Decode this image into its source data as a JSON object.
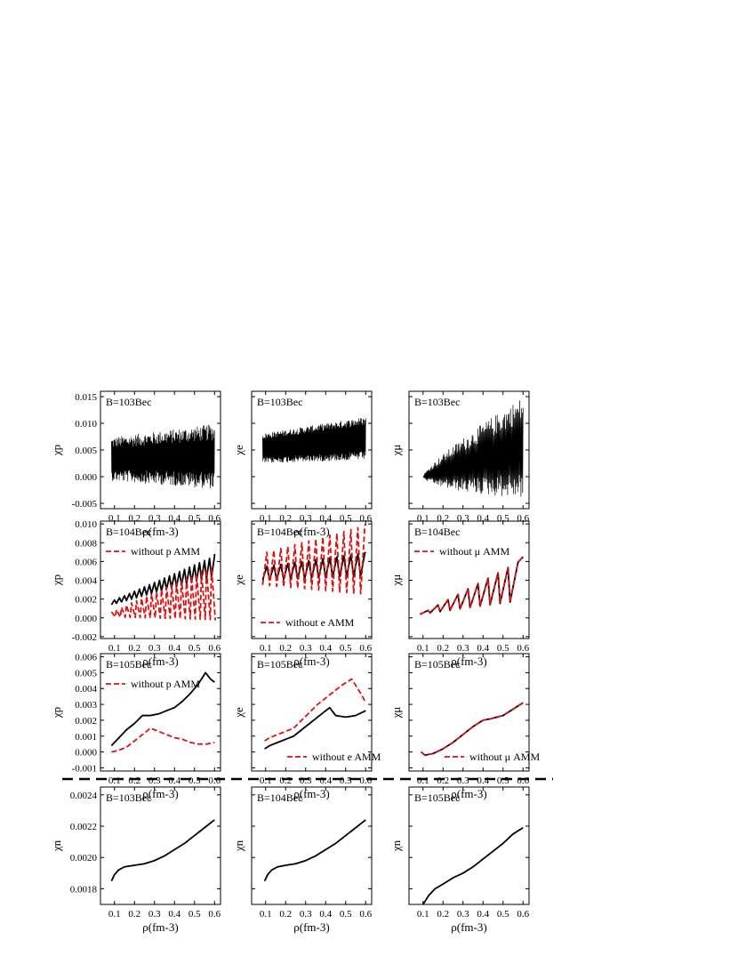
{
  "figure": {
    "separator_style": "dashed"
  },
  "colors": {
    "full": "#000000",
    "without_amm": "#dd1111"
  },
  "chart_data": [
    {
      "id": "p1",
      "type": "line",
      "ylabel": "χp",
      "xlabel": "ρ(fm-3)",
      "panel_label": "B=103Bec",
      "xlim": [
        0.03,
        0.63
      ],
      "ylim": [
        -0.006,
        0.016
      ],
      "x_ticks": [
        "0.1",
        "0.2",
        "0.3",
        "0.4",
        "0.5",
        "0.6"
      ],
      "y_ticks": [
        "-0.005",
        "0.000",
        "0.005",
        "0.010",
        "0.015"
      ],
      "y_tick_values": [
        -0.005,
        0.0,
        0.005,
        0.01,
        0.015
      ],
      "series": [
        {
          "style": "solid",
          "color": "#000000",
          "kind": "osc",
          "params": {
            "x0": 0.085,
            "x1": 0.6,
            "base": [
              0.0033,
              0.0038
            ],
            "amp": [
              0.003,
              0.0045
            ],
            "cycles": 180,
            "noise": 0.35
          }
        }
      ]
    },
    {
      "id": "e1",
      "type": "line",
      "ylabel": "χe",
      "xlabel": "ρ(fm-3)",
      "panel_label": "B=103Bec",
      "xlim": [
        0.03,
        0.63
      ],
      "ylim": [
        -0.006,
        0.016
      ],
      "x_ticks": [
        "0.1",
        "0.2",
        "0.3",
        "0.4",
        "0.5",
        "0.6"
      ],
      "y_ticks": [],
      "y_tick_values": [
        -0.005,
        0.0,
        0.005,
        0.01,
        0.015
      ],
      "series": [
        {
          "style": "solid",
          "color": "#000000",
          "kind": "osc",
          "params": {
            "x0": 0.085,
            "x1": 0.6,
            "base": [
              0.0053,
              0.0072
            ],
            "amp": [
              0.0022,
              0.0032
            ],
            "cycles": 200,
            "noise": 0.25
          }
        }
      ]
    },
    {
      "id": "m1",
      "type": "line",
      "ylabel": "χμ",
      "xlabel": "",
      "panel_label": "B=103Bec",
      "xlim": [
        0.03,
        0.63
      ],
      "ylim": [
        -0.006,
        0.016
      ],
      "x_ticks": [
        "0.1",
        "0.2",
        "0.3",
        "0.4",
        "0.5",
        "0.6"
      ],
      "y_ticks": [],
      "y_tick_values": [
        -0.005,
        0.0,
        0.005,
        0.01,
        0.015
      ],
      "series": [
        {
          "style": "solid",
          "color": "#000000",
          "kind": "fan",
          "params": {
            "x0": 0.1,
            "x1": 0.6,
            "base": [
              0.0,
              0.0055
            ],
            "amp": [
              0.0,
              0.0095
            ],
            "cycles": 120
          }
        }
      ]
    },
    {
      "id": "p2",
      "type": "line",
      "ylabel": "χp",
      "xlabel": "ρ(fm-3)",
      "panel_label": "B=104Bec",
      "xlim": [
        0.03,
        0.63
      ],
      "ylim": [
        -0.0022,
        0.0103
      ],
      "x_ticks": [
        "0.1",
        "0.2",
        "0.3",
        "0.4",
        "0.5",
        "0.6"
      ],
      "y_ticks": [
        "-0.002",
        "0.000",
        "0.002",
        "0.004",
        "0.006",
        "0.008",
        "0.010"
      ],
      "y_tick_values": [
        -0.002,
        0.0,
        0.002,
        0.004,
        0.006,
        0.008,
        0.01
      ],
      "legend": {
        "label": "without p AMM",
        "position": "upper-left"
      },
      "series": [
        {
          "style": "solid",
          "color": "#000000",
          "kind": "saw",
          "params": {
            "x0": 0.085,
            "x1": 0.6,
            "period": 0.025,
            "base": [
              0.0014,
              0.0045
            ],
            "amp": [
              0.0005,
              0.0023
            ]
          }
        },
        {
          "name": "without p AMM",
          "style": "dashed",
          "color": "#dd1111",
          "kind": "saw",
          "params": {
            "x0": 0.085,
            "x1": 0.6,
            "period": 0.025,
            "base": [
              0.0001,
              -0.0002
            ],
            "amp": [
              0.0006,
              0.0065
            ],
            "invert": true
          }
        }
      ]
    },
    {
      "id": "e2",
      "type": "line",
      "ylabel": "χe",
      "xlabel": "ρ(fm-3)",
      "panel_label": "B=104Bec",
      "xlim": [
        0.03,
        0.63
      ],
      "ylim": [
        -0.0022,
        0.0103
      ],
      "x_ticks": [
        "0.1",
        "0.2",
        "0.3",
        "0.4",
        "0.5",
        "0.6"
      ],
      "y_ticks": [],
      "y_tick_values": [
        -0.002,
        0.0,
        0.002,
        0.004,
        0.006,
        0.008,
        0.01
      ],
      "legend": {
        "label": "without e AMM",
        "position": "lower-left"
      },
      "series": [
        {
          "style": "solid",
          "color": "#000000",
          "kind": "saw",
          "params": {
            "x0": 0.085,
            "x1": 0.6,
            "period": 0.035,
            "base": [
              0.004,
              0.0045
            ],
            "amp": [
              0.0015,
              0.0025
            ]
          }
        },
        {
          "name": "without e AMM",
          "style": "dashed",
          "color": "#dd1111",
          "kind": "saw",
          "params": {
            "x0": 0.085,
            "x1": 0.6,
            "period": 0.035,
            "base": [
              0.0035,
              0.0025
            ],
            "amp": [
              0.0035,
              0.0075
            ]
          }
        }
      ]
    },
    {
      "id": "m2",
      "type": "line",
      "ylabel": "χμ",
      "xlabel": "ρ(fm-3)",
      "panel_label": "B=104Bec",
      "xlim": [
        0.03,
        0.63
      ],
      "ylim": [
        -0.0022,
        0.0103
      ],
      "x_ticks": [
        "0.1",
        "0.2",
        "0.3",
        "0.4",
        "0.5",
        "0.6"
      ],
      "y_ticks": [],
      "y_tick_values": [
        -0.002,
        0.0,
        0.002,
        0.004,
        0.006,
        0.008,
        0.01
      ],
      "legend": {
        "label": "without μ AMM",
        "position": "upper-left"
      },
      "series": [
        {
          "style": "solid",
          "color": "#000000",
          "kind": "saw",
          "params": {
            "x0": 0.085,
            "x1": 0.6,
            "period": 0.05,
            "base": [
              0.0003,
              0.001
            ],
            "amp": [
              0.0005,
              0.0055
            ],
            "dip": true
          }
        },
        {
          "name": "without μ AMM",
          "style": "dashed",
          "color": "#dd1111",
          "kind": "saw",
          "params": {
            "x0": 0.085,
            "x1": 0.6,
            "period": 0.05,
            "base": [
              0.0003,
              0.001
            ],
            "amp": [
              0.0005,
              0.0055
            ],
            "dip": true
          }
        }
      ]
    },
    {
      "id": "p3",
      "type": "line",
      "ylabel": "χp",
      "xlabel": "ρ(fm-3)",
      "panel_label": "B=105Bec",
      "xlim": [
        0.03,
        0.63
      ],
      "ylim": [
        -0.0012,
        0.0062
      ],
      "x_ticks": [
        "0.1",
        "0.2",
        "0.3",
        "0.4",
        "0.5",
        "0.6"
      ],
      "y_ticks": [
        "-0.001",
        "0.000",
        "0.001",
        "0.002",
        "0.003",
        "0.004",
        "0.005",
        "0.006"
      ],
      "y_tick_values": [
        -0.001,
        0.0,
        0.001,
        0.002,
        0.003,
        0.004,
        0.005,
        0.006
      ],
      "legend": {
        "label": "without p AMM",
        "position": "upper-left"
      },
      "series": [
        {
          "style": "solid",
          "color": "#000000",
          "kind": "points",
          "x": [
            0.085,
            0.1,
            0.13,
            0.16,
            0.2,
            0.24,
            0.28,
            0.32,
            0.36,
            0.4,
            0.44,
            0.48,
            0.52,
            0.555,
            0.58,
            0.6
          ],
          "y": [
            0.0004,
            0.0006,
            0.001,
            0.0014,
            0.0018,
            0.0023,
            0.0023,
            0.0024,
            0.0026,
            0.0028,
            0.0032,
            0.0037,
            0.0043,
            0.005,
            0.0046,
            0.0044
          ]
        },
        {
          "name": "without p AMM",
          "style": "dashed",
          "color": "#dd1111",
          "kind": "points",
          "x": [
            0.085,
            0.12,
            0.16,
            0.2,
            0.24,
            0.28,
            0.32,
            0.36,
            0.4,
            0.44,
            0.48,
            0.52,
            0.56,
            0.6
          ],
          "y": [
            0.0,
            0.0001,
            0.0003,
            0.0007,
            0.0011,
            0.0015,
            0.0013,
            0.0011,
            0.0009,
            0.0008,
            0.0006,
            0.0005,
            0.0005,
            0.0006
          ]
        }
      ]
    },
    {
      "id": "e3",
      "type": "line",
      "ylabel": "χe",
      "xlabel": "ρ(fm-3)",
      "panel_label": "B=105Bec",
      "xlim": [
        0.03,
        0.63
      ],
      "ylim": [
        -0.0012,
        0.0062
      ],
      "x_ticks": [
        "0.1",
        "0.2",
        "0.3",
        "0.4",
        "0.5",
        "0.6"
      ],
      "y_ticks": [],
      "y_tick_values": [
        -0.001,
        0.0,
        0.001,
        0.002,
        0.003,
        0.004,
        0.005,
        0.006
      ],
      "legend": {
        "label": "without e AMM",
        "position": "lower-right"
      },
      "series": [
        {
          "style": "solid",
          "color": "#000000",
          "kind": "points",
          "x": [
            0.095,
            0.12,
            0.16,
            0.2,
            0.24,
            0.28,
            0.32,
            0.36,
            0.42,
            0.45,
            0.5,
            0.55,
            0.6
          ],
          "y": [
            0.0002,
            0.0004,
            0.0006,
            0.0008,
            0.001,
            0.0014,
            0.0018,
            0.0022,
            0.0028,
            0.0023,
            0.0022,
            0.0023,
            0.0026
          ]
        },
        {
          "name": "without e AMM",
          "style": "dashed",
          "color": "#dd1111",
          "kind": "points",
          "x": [
            0.095,
            0.12,
            0.16,
            0.2,
            0.24,
            0.28,
            0.32,
            0.36,
            0.4,
            0.44,
            0.48,
            0.53,
            0.58,
            0.6
          ],
          "y": [
            0.0007,
            0.0009,
            0.0011,
            0.0013,
            0.0015,
            0.002,
            0.0025,
            0.003,
            0.0034,
            0.0038,
            0.0042,
            0.0046,
            0.0036,
            0.0031
          ]
        }
      ]
    },
    {
      "id": "m3",
      "type": "line",
      "ylabel": "χμ",
      "xlabel": "ρ(fm-3)",
      "panel_label": "B=105Bec",
      "xlim": [
        0.03,
        0.63
      ],
      "ylim": [
        -0.0012,
        0.0062
      ],
      "x_ticks": [
        "0.1",
        "0.2",
        "0.3",
        "0.4",
        "0.5",
        "0.6"
      ],
      "y_ticks": [],
      "y_tick_values": [
        -0.001,
        0.0,
        0.001,
        0.002,
        0.003,
        0.004,
        0.005,
        0.006
      ],
      "legend": {
        "label": "without μ AMM",
        "position": "lower-right"
      },
      "series": [
        {
          "style": "solid",
          "color": "#000000",
          "kind": "points",
          "x": [
            0.09,
            0.11,
            0.15,
            0.2,
            0.25,
            0.3,
            0.35,
            0.4,
            0.44,
            0.5,
            0.55,
            0.6
          ],
          "y": [
            0.0,
            -0.0002,
            -0.0001,
            0.0002,
            0.0006,
            0.0011,
            0.0016,
            0.002,
            0.0021,
            0.0023,
            0.0027,
            0.0031
          ]
        },
        {
          "name": "without μ AMM",
          "style": "dashed",
          "color": "#dd1111",
          "kind": "points",
          "x": [
            0.09,
            0.11,
            0.15,
            0.2,
            0.25,
            0.3,
            0.35,
            0.4,
            0.44,
            0.5,
            0.55,
            0.6
          ],
          "y": [
            0.0,
            -0.0002,
            -0.0001,
            0.0002,
            0.0006,
            0.0011,
            0.0016,
            0.002,
            0.0021,
            0.0023,
            0.0027,
            0.0031
          ]
        }
      ]
    },
    {
      "id": "n1",
      "type": "line",
      "ylabel": "χn",
      "xlabel": "ρ(fm-3)",
      "panel_label": "B=103Bec",
      "xlim": [
        0.03,
        0.63
      ],
      "ylim": [
        0.0017,
        0.00245
      ],
      "x_ticks": [
        "0.1",
        "0.2",
        "0.3",
        "0.4",
        "0.5",
        "0.6"
      ],
      "y_ticks": [
        "0.0018",
        "0.0020",
        "0.0022",
        "0.0024"
      ],
      "y_tick_values": [
        0.0018,
        0.002,
        0.0022,
        0.0024
      ],
      "series": [
        {
          "style": "solid",
          "color": "#000000",
          "kind": "points",
          "x": [
            0.085,
            0.1,
            0.12,
            0.15,
            0.2,
            0.25,
            0.3,
            0.35,
            0.4,
            0.45,
            0.5,
            0.55,
            0.6
          ],
          "y": [
            0.00185,
            0.00189,
            0.00192,
            0.00194,
            0.00195,
            0.00196,
            0.00198,
            0.00201,
            0.00205,
            0.00209,
            0.00214,
            0.00219,
            0.00224
          ]
        }
      ]
    },
    {
      "id": "n2",
      "type": "line",
      "ylabel": "χn",
      "xlabel": "ρ(fm-3)",
      "panel_label": "B=104Bec",
      "xlim": [
        0.03,
        0.63
      ],
      "ylim": [
        0.0017,
        0.00245
      ],
      "x_ticks": [
        "0.1",
        "0.2",
        "0.3",
        "0.4",
        "0.5",
        "0.6"
      ],
      "y_ticks": [],
      "y_tick_values": [
        0.0018,
        0.002,
        0.0022,
        0.0024
      ],
      "series": [
        {
          "style": "solid",
          "color": "#000000",
          "kind": "points",
          "x": [
            0.095,
            0.11,
            0.13,
            0.16,
            0.2,
            0.25,
            0.3,
            0.35,
            0.4,
            0.45,
            0.5,
            0.55,
            0.6
          ],
          "y": [
            0.00185,
            0.00189,
            0.00192,
            0.00194,
            0.00195,
            0.00196,
            0.00198,
            0.00201,
            0.00205,
            0.00209,
            0.00214,
            0.00219,
            0.00224
          ]
        }
      ]
    },
    {
      "id": "n3",
      "type": "line",
      "ylabel": "χn",
      "xlabel": "ρ(fm-3)",
      "panel_label": "B=105Bec",
      "xlim": [
        0.03,
        0.63
      ],
      "ylim": [
        0.0017,
        0.00245
      ],
      "x_ticks": [
        "0.1",
        "0.2",
        "0.3",
        "0.4",
        "0.5",
        "0.6"
      ],
      "y_ticks": [],
      "y_tick_values": [
        0.0018,
        0.002,
        0.0022,
        0.0024
      ],
      "series": [
        {
          "style": "solid",
          "color": "#000000",
          "kind": "points",
          "x": [
            0.1,
            0.13,
            0.16,
            0.2,
            0.25,
            0.3,
            0.35,
            0.4,
            0.45,
            0.5,
            0.55,
            0.6
          ],
          "y": [
            0.0017,
            0.00176,
            0.0018,
            0.00183,
            0.00187,
            0.0019,
            0.00194,
            0.00199,
            0.00204,
            0.00209,
            0.00215,
            0.00219
          ]
        }
      ]
    }
  ]
}
